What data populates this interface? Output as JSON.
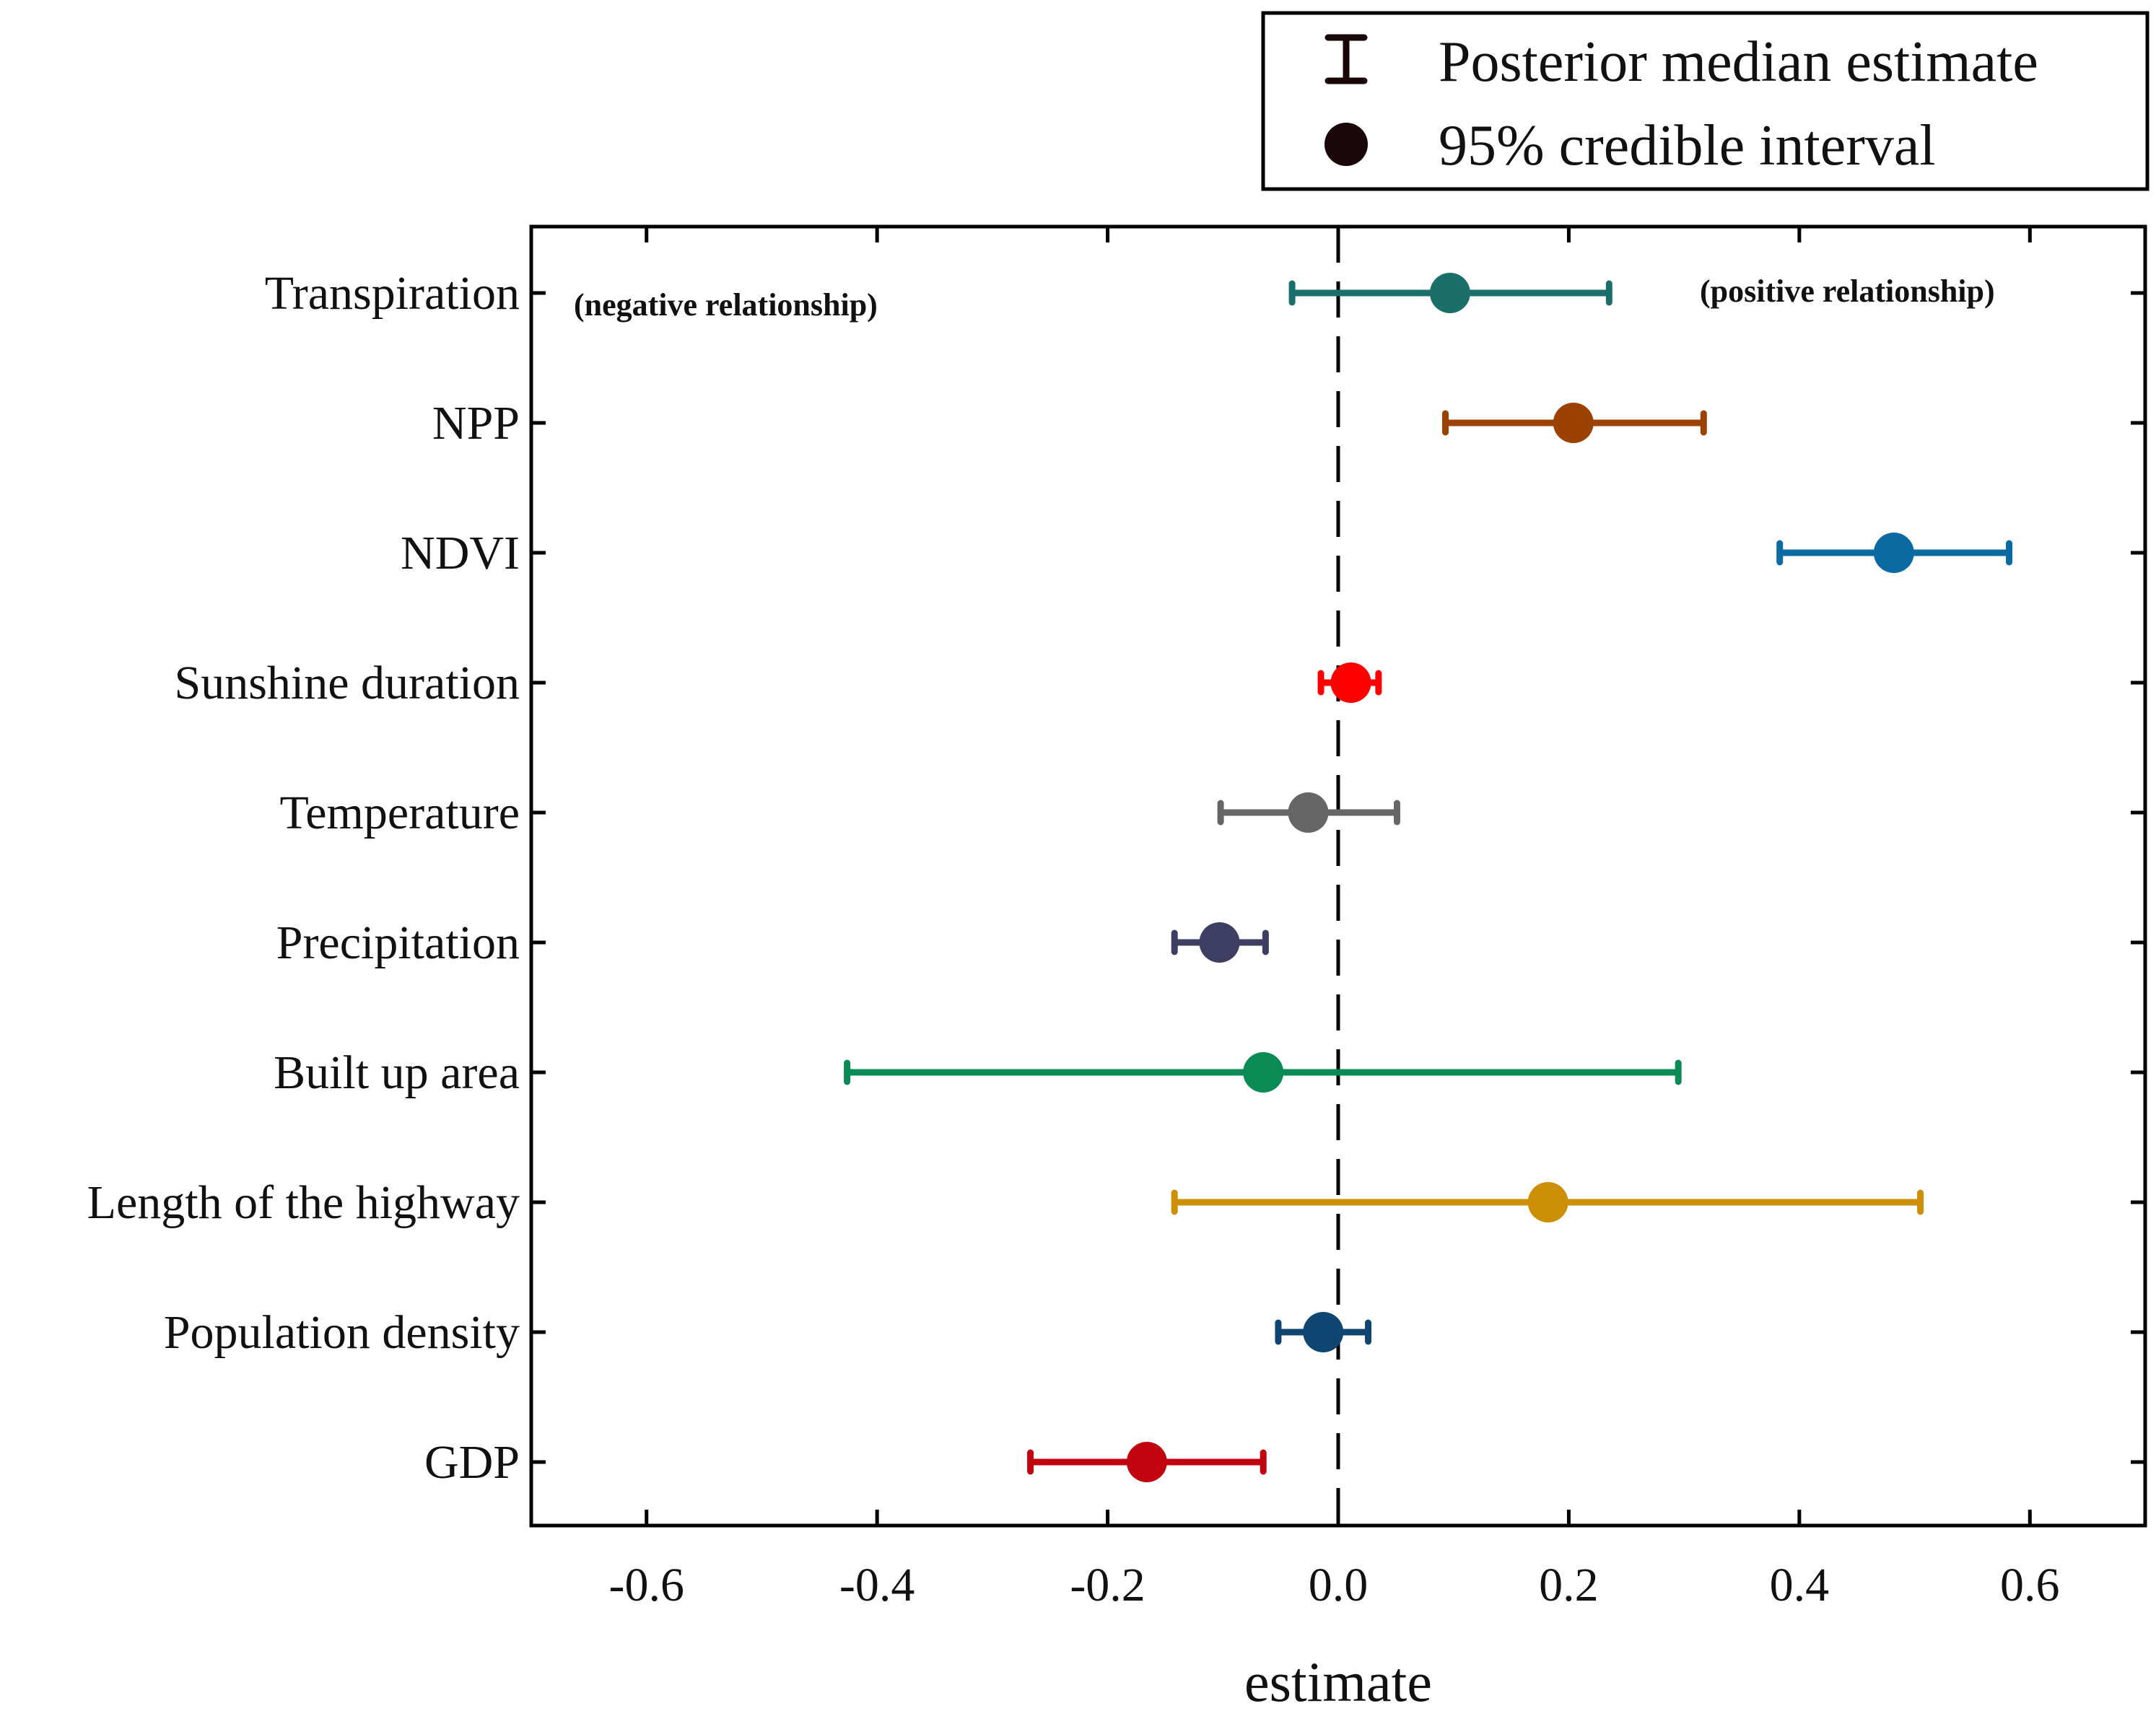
{
  "chart_data": {
    "type": "forest",
    "title": "",
    "xlabel": "estimate",
    "ylabel": "",
    "xlim": [
      -0.7,
      0.7
    ],
    "x_ticks": [
      -0.6,
      -0.4,
      -0.2,
      0.0,
      0.2,
      0.4,
      0.6
    ],
    "x_tick_labels": [
      "-0.6",
      "-0.4",
      "-0.2",
      "0.0",
      "0.2",
      "0.4",
      "0.6"
    ],
    "reference_line": 0.0,
    "annotations": {
      "negative": "(negative relationship)",
      "positive": "(positive relationship)"
    },
    "legend": {
      "position": "top-right",
      "entries": [
        {
          "marker": "errorbar",
          "label": "Posterior median estimate"
        },
        {
          "marker": "dot",
          "label": "95% credible interval"
        }
      ]
    },
    "series": [
      {
        "name": "Transpiration",
        "estimate": 0.097,
        "lower": -0.04,
        "upper": 0.235,
        "color": "#1b6f6a"
      },
      {
        "name": "NPP",
        "estimate": 0.204,
        "lower": 0.093,
        "upper": 0.317,
        "color": "#9b4203"
      },
      {
        "name": "NDVI",
        "estimate": 0.482,
        "lower": 0.383,
        "upper": 0.582,
        "color": "#0a6aa1"
      },
      {
        "name": "Sunshine duration",
        "estimate": 0.011,
        "lower": -0.015,
        "upper": 0.035,
        "color": "#fe0000"
      },
      {
        "name": "Temperature",
        "estimate": -0.026,
        "lower": -0.102,
        "upper": 0.051,
        "color": "#666666"
      },
      {
        "name": "Precipitation",
        "estimate": -0.103,
        "lower": -0.142,
        "upper": -0.063,
        "color": "#3e3e63"
      },
      {
        "name": "Built up area",
        "estimate": -0.065,
        "lower": -0.426,
        "upper": 0.295,
        "color": "#0a8a54"
      },
      {
        "name": "Length of the highway",
        "estimate": 0.182,
        "lower": -0.142,
        "upper": 0.505,
        "color": "#cd8f06"
      },
      {
        "name": "Population density",
        "estimate": -0.013,
        "lower": -0.052,
        "upper": 0.026,
        "color": "#0e4571"
      },
      {
        "name": "GDP",
        "estimate": -0.166,
        "lower": -0.267,
        "upper": -0.065,
        "color": "#c0030e"
      }
    ]
  }
}
